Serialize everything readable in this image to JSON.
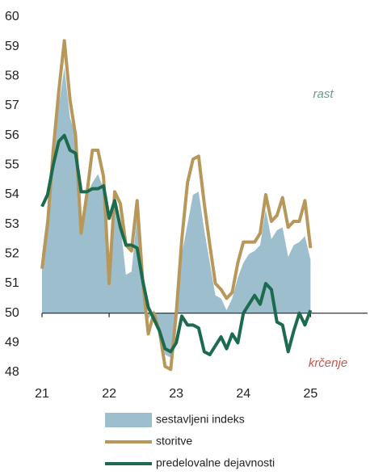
{
  "chart_data": {
    "type": "line",
    "x": [
      21.0,
      21.083,
      21.167,
      21.25,
      21.333,
      21.417,
      21.5,
      21.583,
      21.667,
      21.75,
      21.833,
      21.917,
      22.0,
      22.083,
      22.167,
      22.25,
      22.333,
      22.417,
      22.5,
      22.583,
      22.667,
      22.75,
      22.833,
      22.917,
      23.0,
      23.083,
      23.167,
      23.25,
      23.333,
      23.417,
      23.5,
      23.583,
      23.667,
      23.75,
      23.833,
      23.917,
      24.0,
      24.083,
      24.167,
      24.25,
      24.333,
      24.417,
      24.5,
      24.583,
      24.667,
      24.75,
      24.833,
      24.917,
      25.0
    ],
    "series": [
      {
        "name": "sestavljeni indeks",
        "kind": "area",
        "color": "#9dbfcd",
        "values": [
          52.0,
          53.5,
          55.5,
          57.0,
          58.3,
          56.6,
          56.0,
          53.0,
          54.0,
          54.4,
          54.7,
          54.2,
          52.0,
          54.0,
          53.0,
          51.3,
          51.4,
          53.3,
          51.0,
          49.8,
          50.1,
          49.6,
          48.6,
          48.5,
          50.0,
          52.0,
          53.0,
          54.0,
          54.1,
          52.8,
          51.7,
          50.6,
          50.5,
          50.1,
          50.5,
          51.2,
          51.7,
          52.0,
          52.1,
          52.3,
          53.5,
          52.5,
          52.8,
          52.9,
          51.9,
          52.3,
          52.4,
          52.6,
          51.8
        ]
      },
      {
        "name": "storitve",
        "kind": "line",
        "color": "#b8975a",
        "values": [
          51.5,
          53.0,
          55.5,
          57.5,
          59.2,
          57.2,
          56.0,
          52.7,
          54.0,
          55.5,
          55.5,
          54.6,
          51.0,
          54.1,
          53.7,
          52.3,
          52.1,
          53.8,
          51.1,
          49.3,
          50.0,
          49.4,
          48.2,
          48.1,
          50.0,
          52.5,
          54.4,
          55.2,
          55.3,
          53.7,
          52.3,
          51.0,
          50.8,
          50.5,
          50.7,
          51.7,
          52.4,
          52.4,
          52.4,
          52.7,
          54.0,
          53.1,
          53.3,
          53.9,
          52.9,
          53.1,
          53.1,
          53.8,
          52.2
        ]
      },
      {
        "name": "predelovalne dejavnosti",
        "kind": "line",
        "color": "#1d6b4f",
        "values": [
          53.6,
          54.0,
          55.0,
          55.8,
          56.0,
          55.5,
          55.4,
          54.1,
          54.1,
          54.2,
          54.2,
          54.3,
          53.2,
          53.8,
          52.9,
          52.3,
          52.3,
          52.2,
          51.1,
          50.2,
          49.8,
          49.4,
          48.8,
          48.7,
          49.0,
          49.9,
          49.6,
          49.6,
          49.5,
          48.7,
          48.6,
          48.9,
          49.2,
          48.8,
          49.3,
          49.0,
          50.0,
          50.3,
          50.6,
          50.3,
          51.0,
          50.8,
          49.7,
          49.6,
          48.7,
          49.4,
          50.0,
          49.6,
          50.1
        ]
      }
    ],
    "baseline": 50,
    "xlim": [
      21,
      25.85
    ],
    "xticks": [
      21,
      22,
      23,
      24,
      25
    ],
    "ylim": [
      48,
      60
    ],
    "yticks": [
      48,
      49,
      50,
      51,
      52,
      53,
      54,
      55,
      56,
      57,
      58,
      59,
      60
    ],
    "annotations": [
      "rast",
      "krčenje"
    ]
  }
}
